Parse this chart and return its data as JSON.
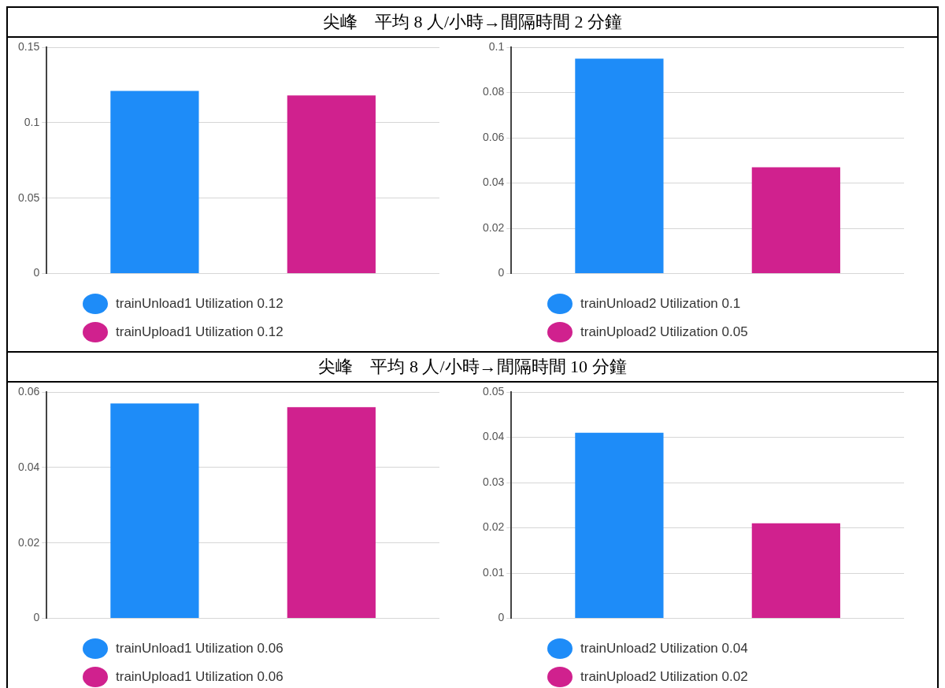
{
  "chart_data": [
    {
      "type": "bar",
      "title": "尖峰　平均 8 人/小時→間隔時間 2 分鐘",
      "categories": [
        null
      ],
      "ylim": [
        0,
        0.15
      ],
      "yticks": [
        0,
        0.05,
        0.1,
        0.15
      ],
      "grid": "y",
      "legend": "bottom",
      "series": [
        {
          "name": "trainUnload1 Utilization 0.12",
          "color": "#1e8cf8",
          "values": [
            0.121
          ]
        },
        {
          "name": "trainUpload1 Utilization 0.12",
          "color": "#d0218e",
          "values": [
            0.118
          ]
        }
      ]
    },
    {
      "type": "bar",
      "categories": [
        null
      ],
      "ylim": [
        0,
        0.1
      ],
      "yticks": [
        0,
        0.02,
        0.04,
        0.06,
        0.08,
        0.1
      ],
      "grid": "y",
      "legend": "bottom",
      "series": [
        {
          "name": "trainUnload2 Utilization 0.1",
          "color": "#1e8cf8",
          "values": [
            0.095
          ]
        },
        {
          "name": "trainUpload2 Utilization 0.05",
          "color": "#d0218e",
          "values": [
            0.047
          ]
        }
      ]
    },
    {
      "type": "bar",
      "title": "尖峰　平均 8 人/小時→間隔時間 10 分鐘",
      "categories": [
        null
      ],
      "ylim": [
        0,
        0.06
      ],
      "yticks": [
        0,
        0.02,
        0.04,
        0.06
      ],
      "grid": "y",
      "legend": "bottom",
      "series": [
        {
          "name": "trainUnload1 Utilization 0.06",
          "color": "#1e8cf8",
          "values": [
            0.057
          ]
        },
        {
          "name": "trainUpload1 Utilization 0.06",
          "color": "#d0218e",
          "values": [
            0.056
          ]
        }
      ]
    },
    {
      "type": "bar",
      "categories": [
        null
      ],
      "ylim": [
        0,
        0.05
      ],
      "yticks": [
        0,
        0.01,
        0.02,
        0.03,
        0.04,
        0.05
      ],
      "grid": "y",
      "legend": "bottom",
      "series": [
        {
          "name": "trainUnload2 Utilization 0.04",
          "color": "#1e8cf8",
          "values": [
            0.041
          ]
        },
        {
          "name": "trainUpload2 Utilization 0.02",
          "color": "#d0218e",
          "values": [
            0.021
          ]
        }
      ]
    }
  ]
}
